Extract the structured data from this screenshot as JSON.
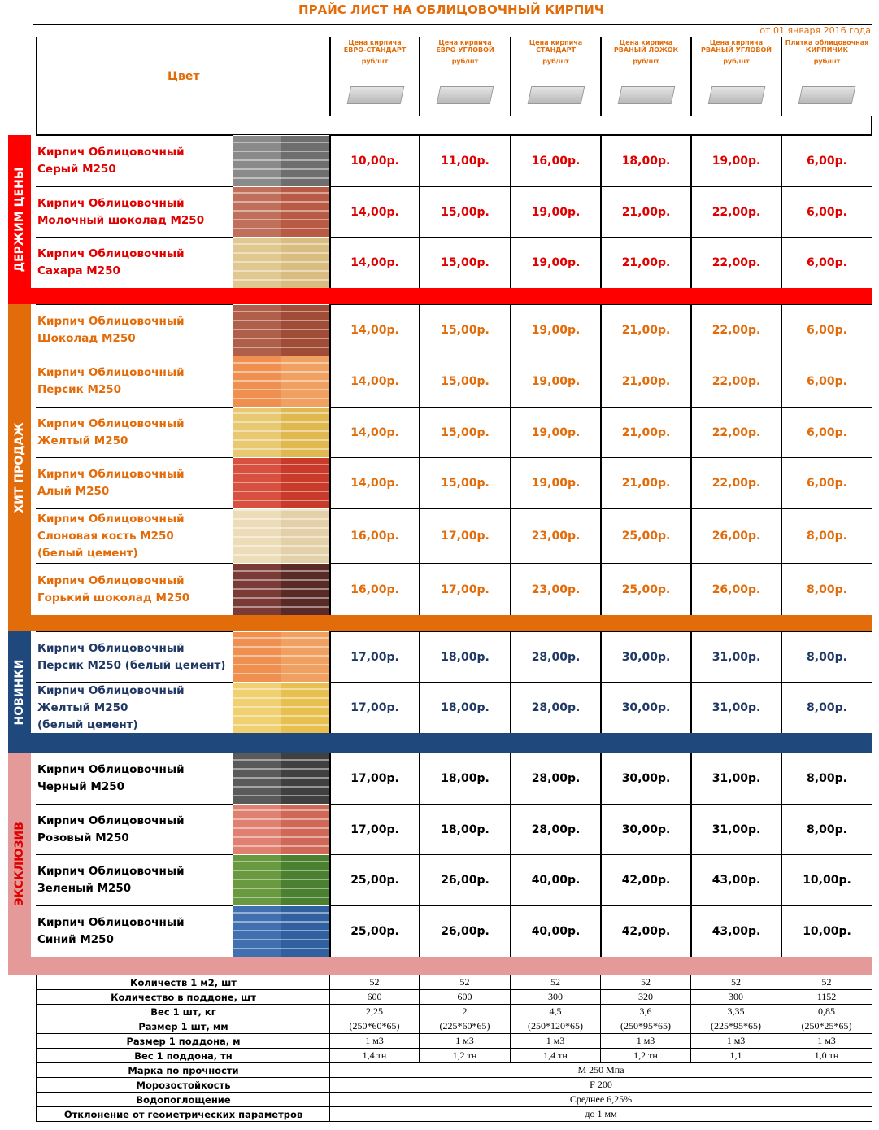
{
  "title": "ПРАЙС ЛИСТ НА ОБЛИЦОВОЧНЫЙ КИРПИЧ",
  "date": "от 01 января 2016 года",
  "header": {
    "color": "Цвет",
    "columns": [
      {
        "lines": [
          "Цена кирпича",
          "ЕВРО-СТАНДАРТ"
        ],
        "unit": "руб/шт"
      },
      {
        "lines": [
          "Цена кирпича",
          "ЕВРО УГЛОВОЙ"
        ],
        "unit": "руб/шт"
      },
      {
        "lines": [
          "Цена кирпича",
          "СТАНДАРТ"
        ],
        "unit": "руб/шт"
      },
      {
        "lines": [
          "Цена кирпича",
          "РВАНЫЙ ЛОЖОК"
        ],
        "unit": "руб/шт"
      },
      {
        "lines": [
          "Цена кирпича",
          "РВАНЫЙ УГЛОВОЙ"
        ],
        "unit": "руб/шт"
      },
      {
        "lines": [
          "Плитка облицовочная",
          "КИРПИЧИК"
        ],
        "unit": "руб/шт"
      }
    ]
  },
  "groups": [
    {
      "label": "ДЕРЖИМ ЦЕНЫ",
      "rows": [
        {
          "name": [
            "Кирпич Облицовочный",
            "Серый М250"
          ],
          "prices": [
            "10,00р.",
            "11,00р.",
            "16,00р.",
            "18,00р.",
            "19,00р.",
            "6,00р."
          ]
        },
        {
          "name": [
            "Кирпич Облицовочный",
            "Молочный шоколад М250"
          ],
          "prices": [
            "14,00р.",
            "15,00р.",
            "19,00р.",
            "21,00р.",
            "22,00р.",
            "6,00р."
          ]
        },
        {
          "name": [
            "Кирпич Облицовочный",
            "Сахара М250"
          ],
          "prices": [
            "14,00р.",
            "15,00р.",
            "19,00р.",
            "21,00р.",
            "22,00р.",
            "6,00р."
          ]
        }
      ]
    },
    {
      "label": "ХИТ ПРОДАЖ",
      "rows": [
        {
          "name": [
            "Кирпич Облицовочный",
            "Шоколад М250"
          ],
          "prices": [
            "14,00р.",
            "15,00р.",
            "19,00р.",
            "21,00р.",
            "22,00р.",
            "6,00р."
          ]
        },
        {
          "name": [
            "Кирпич Облицовочный",
            "Персик М250"
          ],
          "prices": [
            "14,00р.",
            "15,00р.",
            "19,00р.",
            "21,00р.",
            "22,00р.",
            "6,00р."
          ]
        },
        {
          "name": [
            "Кирпич Облицовочный",
            "Желтый М250"
          ],
          "prices": [
            "14,00р.",
            "15,00р.",
            "19,00р.",
            "21,00р.",
            "22,00р.",
            "6,00р."
          ]
        },
        {
          "name": [
            "Кирпич Облицовочный",
            "Алый М250"
          ],
          "prices": [
            "14,00р.",
            "15,00р.",
            "19,00р.",
            "21,00р.",
            "22,00р.",
            "6,00р."
          ]
        },
        {
          "name": [
            "Кирпич Облицовочный",
            "Слоновая кость М250",
            "(белый цемент)"
          ],
          "prices": [
            "16,00р.",
            "17,00р.",
            "23,00р.",
            "25,00р.",
            "26,00р.",
            "8,00р."
          ]
        },
        {
          "name": [
            "Кирпич Облицовочный",
            "Горький шоколад М250"
          ],
          "prices": [
            "16,00р.",
            "17,00р.",
            "23,00р.",
            "25,00р.",
            "26,00р.",
            "8,00р."
          ]
        }
      ]
    },
    {
      "label": "НОВИНКИ",
      "rows": [
        {
          "name": [
            "Кирпич Облицовочный",
            "Персик М250 (белый цемент)"
          ],
          "prices": [
            "17,00р.",
            "18,00р.",
            "28,00р.",
            "30,00р.",
            "31,00р.",
            "8,00р."
          ]
        },
        {
          "name": [
            "Кирпич Облицовочный",
            "Желтый М250",
            "(белый цемент)"
          ],
          "prices": [
            "17,00р.",
            "18,00р.",
            "28,00р.",
            "30,00р.",
            "31,00р.",
            "8,00р."
          ]
        }
      ]
    },
    {
      "label": "ЭКСКЛЮЗИВ",
      "rows": [
        {
          "name": [
            "Кирпич Облицовочный",
            "Черный М250"
          ],
          "prices": [
            "17,00р.",
            "18,00р.",
            "28,00р.",
            "30,00р.",
            "31,00р.",
            "8,00р."
          ]
        },
        {
          "name": [
            "Кирпич Облицовочный",
            "Розовый  М250"
          ],
          "prices": [
            "17,00р.",
            "18,00р.",
            "28,00р.",
            "30,00р.",
            "31,00р.",
            "8,00р."
          ]
        },
        {
          "name": [
            "Кирпич Облицовочный",
            "Зеленый М250"
          ],
          "prices": [
            "25,00р.",
            "26,00р.",
            "40,00р.",
            "42,00р.",
            "43,00р.",
            "10,00р."
          ]
        },
        {
          "name": [
            "Кирпич Облицовочный",
            "Синий М250"
          ],
          "prices": [
            "25,00р.",
            "26,00р.",
            "40,00р.",
            "42,00р.",
            "43,00р.",
            "10,00р."
          ]
        }
      ]
    }
  ],
  "specs": [
    {
      "label": "Количеств 1 м2,  шт",
      "values": [
        "52",
        "52",
        "52",
        "52",
        "52",
        "52"
      ]
    },
    {
      "label": "Количество в поддоне, шт",
      "values": [
        "600",
        "600",
        "300",
        "320",
        "300",
        "1152"
      ]
    },
    {
      "label": "Вес  1 шт, кг",
      "values": [
        "2,25",
        "2",
        "4,5",
        "3,6",
        "3,35",
        "0,85"
      ]
    },
    {
      "label": "Размер 1 шт, мм",
      "values": [
        "(250*60*65)",
        "(225*60*65)",
        "(250*120*65)",
        "(250*95*65)",
        "(225*95*65)",
        "(250*25*65)"
      ]
    },
    {
      "label": "Размер 1 поддона, м",
      "values": [
        "1 м3",
        "1 м3",
        "1 м3",
        "1 м3",
        "1 м3",
        "1 м3"
      ]
    },
    {
      "label": "Вес 1 поддона, тн",
      "values": [
        "1,4 тн",
        "1,2 тн",
        "1,4 тн",
        "1,2 тн",
        "1,1",
        "1,0 тн"
      ]
    },
    {
      "label": "Марка по прочности",
      "value": "М 250 Мпа"
    },
    {
      "label": "Морозостойкость",
      "value": "F 200"
    },
    {
      "label": "Водопоглощение",
      "value": "Среднее 6,25%"
    },
    {
      "label": "Отклонение от геометрических параметров",
      "value": "до 1 мм"
    }
  ]
}
